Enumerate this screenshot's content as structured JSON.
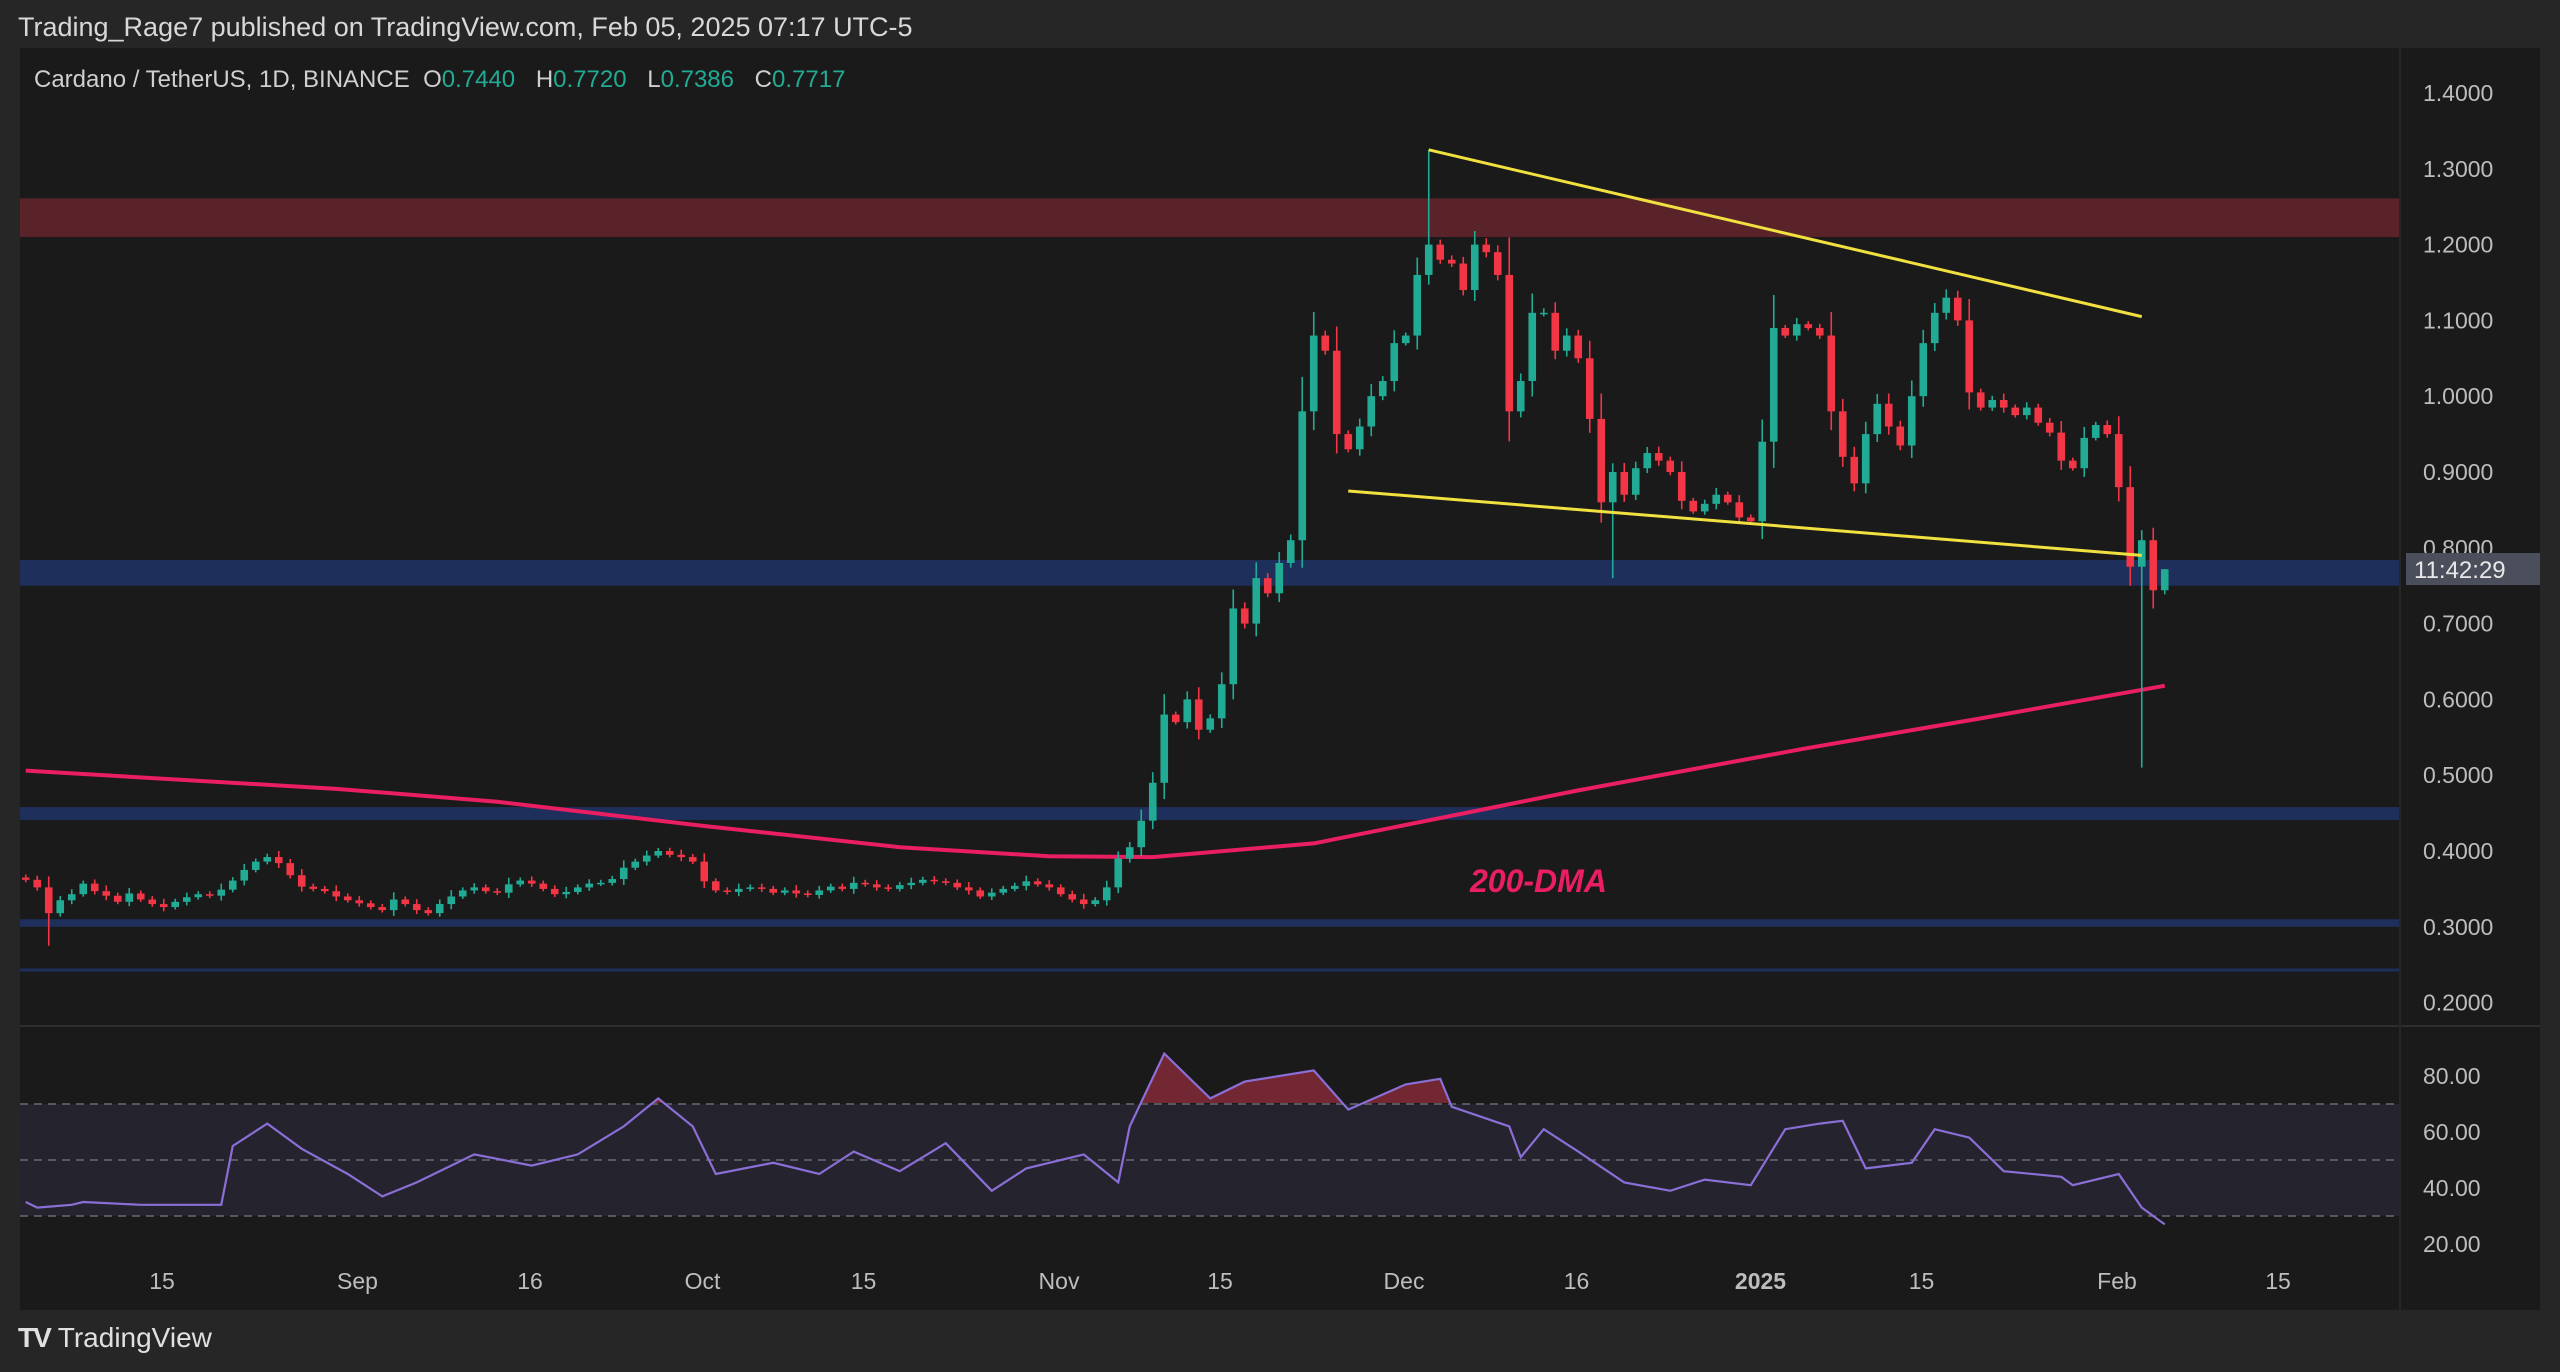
{
  "header": {
    "published": "Trading_Rage7 published on TradingView.com, Feb 05, 2025 07:17 UTC-5"
  },
  "legend": {
    "symbol": "Cardano / TetherUS, 1D, BINANCE",
    "o_label": "O",
    "o": "0.7440",
    "h_label": "H",
    "h": "0.7720",
    "l_label": "L",
    "l": "0.7386",
    "c_label": "C",
    "c": "0.7717"
  },
  "countdown": "11:42:29",
  "annotation": "200-DMA",
  "footer": {
    "brand": "TradingView",
    "logo": "TV"
  },
  "colors": {
    "up": "#22ab94",
    "down": "#f23645",
    "ma": "#e91e63",
    "trend": "#f0e040",
    "rsi": "#8b6fd6",
    "supply": "#5a2329",
    "support": "#1f2f5c"
  },
  "chart_data": {
    "type": "candlestick",
    "title": "Cardano / TetherUS, 1D, BINANCE",
    "start_date": "2024-08-03",
    "ylim": [
      0.2,
      1.4
    ],
    "y_ticks": [
      "1.4000",
      "1.3000",
      "1.2000",
      "1.1000",
      "1.0000",
      "0.9000",
      "0.8000",
      "0.7000",
      "0.6000",
      "0.5000",
      "0.4000",
      "0.3000",
      "0.2000"
    ],
    "x_ticks": [
      {
        "day": 12,
        "label": "15"
      },
      {
        "day": 29,
        "label": "Sep"
      },
      {
        "day": 44,
        "label": "16"
      },
      {
        "day": 59,
        "label": "Oct"
      },
      {
        "day": 73,
        "label": "15"
      },
      {
        "day": 90,
        "label": "Nov"
      },
      {
        "day": 104,
        "label": "15"
      },
      {
        "day": 120,
        "label": "Dec"
      },
      {
        "day": 135,
        "label": "16"
      },
      {
        "day": 151,
        "label": "2025",
        "bold": true
      },
      {
        "day": 165,
        "label": "15"
      },
      {
        "day": 182,
        "label": "Feb"
      },
      {
        "day": 196,
        "label": "15"
      }
    ],
    "first_open": 0.365,
    "close": [
      0.362,
      0.352,
      0.318,
      0.335,
      0.343,
      0.357,
      0.347,
      0.341,
      0.333,
      0.344,
      0.336,
      0.33,
      0.326,
      0.333,
      0.339,
      0.343,
      0.341,
      0.349,
      0.361,
      0.375,
      0.386,
      0.392,
      0.384,
      0.368,
      0.353,
      0.35,
      0.347,
      0.34,
      0.335,
      0.331,
      0.326,
      0.322,
      0.336,
      0.33,
      0.322,
      0.318,
      0.33,
      0.34,
      0.348,
      0.352,
      0.347,
      0.345,
      0.356,
      0.361,
      0.357,
      0.35,
      0.343,
      0.346,
      0.352,
      0.357,
      0.358,
      0.363,
      0.378,
      0.386,
      0.394,
      0.4,
      0.395,
      0.392,
      0.386,
      0.36,
      0.348,
      0.346,
      0.35,
      0.352,
      0.35,
      0.345,
      0.348,
      0.344,
      0.342,
      0.348,
      0.353,
      0.35,
      0.358,
      0.356,
      0.352,
      0.35,
      0.355,
      0.358,
      0.362,
      0.36,
      0.358,
      0.352,
      0.348,
      0.34,
      0.345,
      0.35,
      0.354,
      0.36,
      0.356,
      0.352,
      0.343,
      0.336,
      0.33,
      0.335,
      0.352,
      0.39,
      0.405,
      0.44,
      0.49,
      0.58,
      0.57,
      0.6,
      0.56,
      0.575,
      0.62,
      0.72,
      0.7,
      0.76,
      0.74,
      0.78,
      0.81,
      0.98,
      1.08,
      1.06,
      0.95,
      0.93,
      0.96,
      1.0,
      1.02,
      1.07,
      1.08,
      1.16,
      1.2,
      1.18,
      1.175,
      1.14,
      1.2,
      1.19,
      1.16,
      0.98,
      1.02,
      1.11,
      1.11,
      1.06,
      1.08,
      1.05,
      0.97,
      0.86,
      0.9,
      0.87,
      0.905,
      0.925,
      0.915,
      0.9,
      0.862,
      0.848,
      0.858,
      0.87,
      0.86,
      0.84,
      0.835,
      0.94,
      1.09,
      1.08,
      1.095,
      1.09,
      1.08,
      0.98,
      0.92,
      0.885,
      0.95,
      0.99,
      0.96,
      0.935,
      1.0,
      1.07,
      1.11,
      1.13,
      1.1,
      1.005,
      0.985,
      0.995,
      0.985,
      0.975,
      0.985,
      0.965,
      0.952,
      0.915,
      0.905,
      0.945,
      0.962,
      0.95,
      0.88,
      0.775,
      0.81,
      0.744,
      0.7717
    ],
    "wick_overrides": {
      "2": {
        "l": 0.275
      },
      "122": {
        "h": 1.325
      },
      "138": {
        "l": 0.76
      },
      "183": {
        "l": 0.75
      },
      "184": {
        "l": 0.51
      },
      "185": {
        "l": 0.72
      },
      "186": {
        "h": 0.772,
        "l": 0.7386
      }
    },
    "ma200": {
      "name": "200-DMA",
      "points": [
        [
          0,
          0.506
        ],
        [
          27,
          0.482
        ],
        [
          41,
          0.465
        ],
        [
          59,
          0.433
        ],
        [
          76,
          0.405
        ],
        [
          89,
          0.393
        ],
        [
          98,
          0.392
        ],
        [
          112,
          0.41
        ],
        [
          135,
          0.48
        ],
        [
          155,
          0.536
        ],
        [
          170,
          0.575
        ],
        [
          186,
          0.618
        ]
      ]
    },
    "zones": [
      {
        "name": "supply",
        "from": 1.21,
        "to": 1.261
      },
      {
        "name": "support-1",
        "from": 0.75,
        "to": 0.784
      },
      {
        "name": "support-2",
        "from": 0.441,
        "to": 0.458
      },
      {
        "name": "support-3",
        "from": 0.3,
        "to": 0.31
      },
      {
        "name": "support-4",
        "from": 0.242,
        "to": 0.245
      }
    ],
    "trendlines": [
      {
        "name": "upper",
        "from": [
          122,
          1.325
        ],
        "to": [
          184,
          1.105
        ]
      },
      {
        "name": "lower",
        "from": [
          115,
          0.875
        ],
        "to": [
          184,
          0.79
        ]
      }
    ],
    "rsi": {
      "ylim": [
        20,
        80
      ],
      "y_ticks": [
        "80.00",
        "60.00",
        "40.00",
        "20.00"
      ],
      "band": [
        30,
        70
      ],
      "points": [
        [
          0,
          35
        ],
        [
          1,
          33
        ],
        [
          4,
          34
        ],
        [
          5,
          35
        ],
        [
          10,
          34
        ],
        [
          17,
          34
        ],
        [
          18,
          55
        ],
        [
          21,
          63
        ],
        [
          24,
          54
        ],
        [
          28,
          45
        ],
        [
          31,
          37
        ],
        [
          34,
          42
        ],
        [
          39,
          52
        ],
        [
          44,
          48
        ],
        [
          48,
          52
        ],
        [
          52,
          62
        ],
        [
          55,
          72
        ],
        [
          58,
          62
        ],
        [
          60,
          45
        ],
        [
          65,
          49
        ],
        [
          69,
          45
        ],
        [
          72,
          53
        ],
        [
          76,
          46
        ],
        [
          80,
          56
        ],
        [
          84,
          39
        ],
        [
          87,
          47
        ],
        [
          92,
          52
        ],
        [
          95,
          42
        ],
        [
          96,
          62
        ],
        [
          99,
          88
        ],
        [
          103,
          72
        ],
        [
          106,
          78
        ],
        [
          112,
          82
        ],
        [
          115,
          68
        ],
        [
          120,
          77
        ],
        [
          123,
          79
        ],
        [
          124,
          69
        ],
        [
          129,
          62
        ],
        [
          130,
          51
        ],
        [
          132,
          61
        ],
        [
          135,
          53
        ],
        [
          139,
          42
        ],
        [
          143,
          39
        ],
        [
          146,
          43
        ],
        [
          150,
          41
        ],
        [
          153,
          61
        ],
        [
          156,
          63
        ],
        [
          158,
          64
        ],
        [
          160,
          47
        ],
        [
          164,
          49
        ],
        [
          166,
          61
        ],
        [
          169,
          58
        ],
        [
          172,
          46
        ],
        [
          177,
          44
        ],
        [
          178,
          41
        ],
        [
          182,
          45
        ],
        [
          184,
          33
        ],
        [
          186,
          27
        ]
      ]
    }
  }
}
